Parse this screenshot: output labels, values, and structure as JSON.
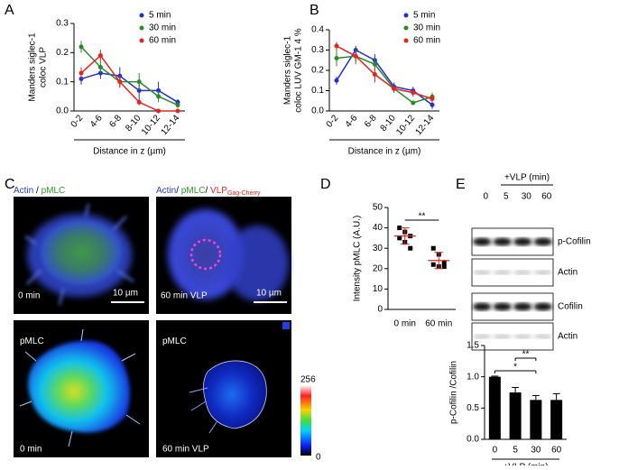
{
  "panel_labels": [
    "A",
    "B",
    "C",
    "D",
    "E"
  ],
  "chart_data": [
    {
      "type": "line",
      "y_label": [
        "Manders  siglec-1",
        "coloc VLP"
      ],
      "x_label": "Distance in z (µm)",
      "categories": [
        "0-2",
        "4-6",
        "6-8",
        "8-10",
        "10-12",
        "12-14"
      ],
      "series": [
        {
          "name": "5 min",
          "color": "#1f2fd0",
          "values": [
            0.11,
            0.13,
            0.12,
            0.07,
            0.07,
            0.03
          ],
          "errors": [
            0.02,
            0.02,
            0.03,
            0.04,
            0.03,
            0.01
          ]
        },
        {
          "name": "30 min",
          "color": "#2a8a2a",
          "values": [
            0.22,
            0.15,
            0.1,
            0.1,
            0.05,
            0.02
          ],
          "errors": [
            0.02,
            0.02,
            0.02,
            0.03,
            0.02,
            0.01
          ]
        },
        {
          "name": "60 min",
          "color": "#e8231e",
          "values": [
            0.13,
            0.19,
            0.1,
            0.03,
            0.0,
            0.0
          ],
          "errors": [
            0.02,
            0.02,
            0.02,
            0.01,
            0.0,
            0.0
          ]
        }
      ],
      "ylim": [
        0,
        0.3
      ],
      "yticks": [
        {
          "value": 0,
          "label": "0.0"
        },
        0.1,
        0.2,
        0.3
      ]
    },
    {
      "type": "line",
      "y_label": [
        "Manders  siglec-1",
        "coloc LUV GM-1 4 %"
      ],
      "x_label": "Distance in z (µm)",
      "categories": [
        "0-2",
        "4-6",
        "6-8",
        "8-10",
        "10-12",
        "12-14"
      ],
      "series": [
        {
          "name": "5 min",
          "color": "#1f2fd0",
          "values": [
            0.15,
            0.3,
            0.25,
            0.12,
            0.1,
            0.03
          ],
          "errors": [
            0.02,
            0.02,
            0.03,
            0.02,
            0.02,
            0.02
          ]
        },
        {
          "name": "30 min",
          "color": "#2a8a2a",
          "values": [
            0.26,
            0.27,
            0.23,
            0.11,
            0.04,
            0.07
          ],
          "errors": [
            0.04,
            0.04,
            0.03,
            0.02,
            0.01,
            0.02
          ]
        },
        {
          "name": "60 min",
          "color": "#e8231e",
          "values": [
            0.32,
            0.27,
            0.18,
            0.11,
            0.09,
            0.06
          ],
          "errors": [
            0.02,
            0.03,
            0.04,
            0.02,
            0.02,
            0.02
          ]
        }
      ],
      "ylim": [
        0,
        0.4
      ],
      "yticks": [
        {
          "value": 0,
          "label": "0.0"
        },
        0.1,
        0.2,
        0.3,
        0.4
      ]
    },
    {
      "type": "dot",
      "y_label": [
        "Intensity pMLC (A.U.)"
      ],
      "categories": [
        "0 min",
        "60 min"
      ],
      "points": [
        [
          40,
          38,
          36,
          35,
          33,
          30
        ],
        [
          30,
          27,
          23,
          22,
          21,
          21
        ]
      ],
      "means": [
        36,
        24
      ],
      "sd": [
        4,
        4
      ],
      "color": "#000000",
      "mean_color": "#e8231e",
      "ylim": [
        0,
        50
      ],
      "yticks": [
        0,
        10,
        20,
        30,
        40,
        50
      ],
      "significance": "**"
    },
    {
      "type": "bar",
      "y_label": [
        "p-Cofilin /Cofilin"
      ],
      "x_label": "+VLP (min)",
      "categories": [
        "0",
        "5",
        "30",
        "60"
      ],
      "values": [
        1.0,
        0.75,
        0.63,
        0.63
      ],
      "errors": [
        0.01,
        0.08,
        0.07,
        0.1
      ],
      "color": "#000000",
      "ylim": [
        0,
        1.5
      ],
      "yticks": [
        {
          "value": 0,
          "label": "0.0"
        },
        0.5,
        {
          "value": 1,
          "label": "1.0"
        },
        1.5
      ],
      "significance": [
        {
          "label": "**",
          "from": "5",
          "to": "30"
        },
        {
          "label": "*",
          "from": "0",
          "to": "30"
        }
      ]
    }
  ],
  "micrographs": [
    {
      "title": [
        {
          "text": "Actin",
          "color": "#2b3bd6"
        },
        {
          "text": " / ",
          "color": "#000000"
        },
        {
          "text": "pMLC",
          "color": "#2a9a2a"
        }
      ],
      "time": "0 min",
      "scale": "10 µm"
    },
    {
      "title": [
        {
          "text": "Actin",
          "color": "#2b3bd6"
        },
        {
          "text": "/ ",
          "color": "#000000"
        },
        {
          "text": "pMLC",
          "color": "#2a9a2a"
        },
        {
          "text": "/ ",
          "color": "#000000"
        },
        {
          "text": "VLP",
          "color": "#e8231e"
        },
        {
          "text": "Gag-Cherry",
          "color": "#e8231e",
          "subscript": true
        }
      ],
      "time": "60 min VLP",
      "scale": "10 µm"
    },
    {
      "title": [
        {
          "text": "pMLC",
          "color": "#ffffff"
        }
      ],
      "time": "0 min"
    },
    {
      "title": [
        {
          "text": "pMLC",
          "color": "#ffffff"
        }
      ],
      "time": "60 min VLP"
    }
  ],
  "colorbar": {
    "max": "256",
    "min": "0"
  },
  "blot": {
    "header": "+VLP (min)",
    "lanes": [
      "0",
      "5",
      "30",
      "60"
    ],
    "rows": [
      "p-Cofilin",
      "Actin",
      "Cofilin",
      "Actin"
    ]
  }
}
